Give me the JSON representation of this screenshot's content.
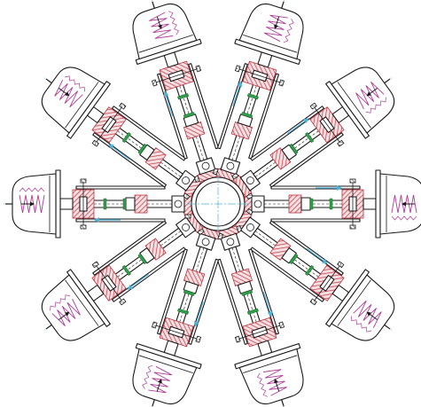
{
  "colors": {
    "line": "#1a1a1a",
    "centerline": "#4fb3d9",
    "hatch": "#c0303a",
    "spring": "#b03a9a",
    "seal": "#2fa04a"
  },
  "drawing": {
    "arm_count": 10,
    "arm_angles_deg": [
      0,
      36,
      72,
      108,
      144,
      180,
      216,
      252,
      288,
      324
    ]
  }
}
